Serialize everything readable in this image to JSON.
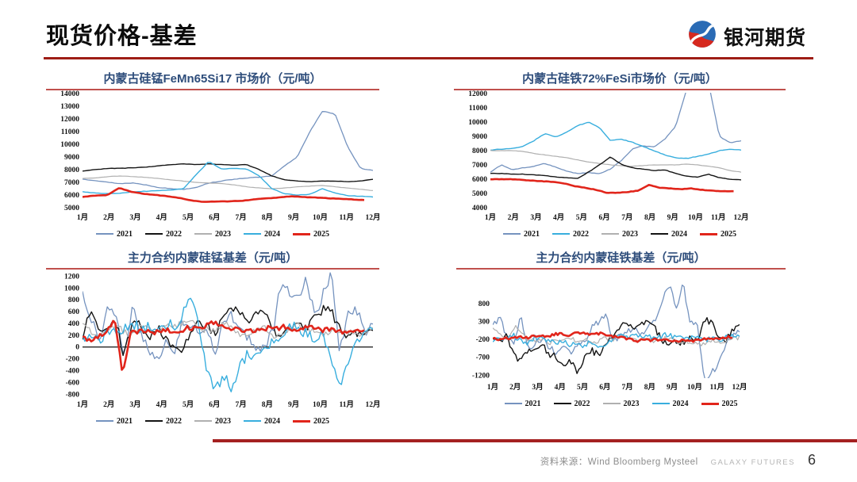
{
  "page": {
    "title": "现货价格-基差",
    "logo_text": "银河期货",
    "source_label": "资料来源：Wind Bloomberg Mysteel",
    "brand_footer": "GALAXY FUTURES",
    "page_number": "6"
  },
  "palette": {
    "steel_blue": "#7593bf",
    "black": "#141414",
    "gray": "#b0b0b0",
    "cyan": "#38aede",
    "red": "#e1251b",
    "title_navy": "#2e4d7b",
    "title_underline": "#c0504d",
    "rule_dark_red": "#9e1d15"
  },
  "months": [
    "1月",
    "2月",
    "3月",
    "4月",
    "5月",
    "6月",
    "7月",
    "8月",
    "9月",
    "10月",
    "11月",
    "12月"
  ],
  "chart_data": [
    {
      "type": "line",
      "title": "内蒙古硅锰FeMn65Si17 市场价（元/吨）",
      "ylabel": "元/吨",
      "ylim": [
        5000,
        14000
      ],
      "yticks": [
        14000,
        13000,
        12000,
        11000,
        10000,
        9000,
        8000,
        7000,
        6000,
        5000
      ],
      "zero_line": false,
      "n": 110,
      "series": [
        {
          "name": "2021",
          "color": "steel_blue",
          "width": 1.3,
          "noise": 40,
          "values": [
            7250,
            7150,
            7000,
            6900,
            6950,
            6800,
            6600,
            6500,
            6450,
            6600,
            6950,
            7100,
            7250,
            7350,
            7400,
            7500,
            8300,
            9000,
            11000,
            12600,
            12400,
            9800,
            8100,
            7950
          ]
        },
        {
          "name": "2022",
          "color": "black",
          "width": 1.4,
          "noise": 25,
          "values": [
            7900,
            8000,
            8100,
            8100,
            8150,
            8200,
            8300,
            8400,
            8450,
            8400,
            8450,
            8400,
            8350,
            8400,
            8000,
            7500,
            7200,
            7100,
            7050,
            7100,
            7100,
            7050,
            7100,
            7250
          ]
        },
        {
          "name": "2023",
          "color": "gray",
          "width": 1.2,
          "noise": 18,
          "values": [
            7300,
            7350,
            7450,
            7500,
            7450,
            7400,
            7300,
            7200,
            7100,
            7000,
            6950,
            6900,
            6800,
            6650,
            6550,
            6500,
            6550,
            6650,
            6700,
            6750,
            6650,
            6550,
            6450,
            6350
          ]
        },
        {
          "name": "2024",
          "color": "cyan",
          "width": 1.4,
          "noise": 30,
          "values": [
            6250,
            6150,
            6100,
            6150,
            6250,
            6300,
            6350,
            6400,
            6500,
            7600,
            8650,
            8050,
            8100,
            8050,
            7500,
            6500,
            6100,
            6000,
            6050,
            6500,
            6150,
            5950,
            5900,
            5850
          ]
        },
        {
          "name": "2025",
          "color": "red",
          "width": 2.6,
          "noise": 28,
          "end_frac": 0.97,
          "values": [
            5850,
            5950,
            6000,
            6550,
            6250,
            6100,
            6000,
            5900,
            5750,
            5550,
            5450,
            5500,
            5500,
            5550,
            5650,
            5750,
            5800,
            5900,
            5850,
            5800,
            5750,
            5700,
            5650,
            5600
          ]
        }
      ]
    },
    {
      "type": "line",
      "title": "内蒙古硅铁72%FeSi市场价（元/吨）",
      "ylabel": "元/吨",
      "ylim": [
        4000,
        12000
      ],
      "yticks": [
        12000,
        11000,
        10000,
        9000,
        8000,
        7000,
        6000,
        5000,
        4000
      ],
      "zero_line": false,
      "n": 110,
      "series": [
        {
          "name": "2021",
          "color": "steel_blue",
          "width": 1.3,
          "noise": 40,
          "values": [
            6500,
            7000,
            6650,
            6800,
            6900,
            7100,
            6850,
            6550,
            6400,
            6450,
            6400,
            6700,
            7300,
            8100,
            8350,
            8250,
            8800,
            9700,
            12300,
            12800,
            12800,
            9000,
            8550,
            8700
          ]
        },
        {
          "name": "2022",
          "color": "cyan",
          "width": 1.4,
          "noise": 35,
          "values": [
            8050,
            8100,
            8150,
            8300,
            8700,
            9200,
            8950,
            9300,
            9750,
            10000,
            9600,
            8700,
            8800,
            8600,
            8300,
            8000,
            7700,
            7500,
            7450,
            7600,
            7750,
            8000,
            8100,
            8050
          ]
        },
        {
          "name": "2023",
          "color": "gray",
          "width": 1.2,
          "noise": 18,
          "values": [
            8000,
            8000,
            8000,
            7950,
            7800,
            7700,
            7600,
            7500,
            7350,
            7200,
            7100,
            7000,
            6950,
            6900,
            6950,
            7000,
            7000,
            7000,
            7050,
            7000,
            6900,
            6800,
            6600,
            6500
          ]
        },
        {
          "name": "2024",
          "color": "black",
          "width": 1.4,
          "noise": 25,
          "values": [
            6400,
            6400,
            6350,
            6350,
            6300,
            6250,
            6150,
            6100,
            6050,
            6500,
            7000,
            7550,
            7050,
            6800,
            6700,
            6600,
            6650,
            6400,
            6200,
            6150,
            6350,
            6100,
            6000,
            5950
          ]
        },
        {
          "name": "2025",
          "color": "red",
          "width": 2.6,
          "noise": 25,
          "end_frac": 0.97,
          "values": [
            6000,
            6000,
            6000,
            5950,
            5900,
            5850,
            5800,
            5700,
            5500,
            5400,
            5250,
            5050,
            5050,
            5100,
            5200,
            5600,
            5400,
            5350,
            5300,
            5350,
            5250,
            5200,
            5150,
            5150
          ]
        }
      ]
    },
    {
      "type": "line",
      "title": "主力合约内蒙硅锰基差（元/吨）",
      "ylabel": "元/吨",
      "ylim": [
        -810,
        1260
      ],
      "yticks": [
        1200,
        1000,
        800,
        600,
        400,
        200,
        0,
        -200,
        -400,
        -600,
        -800
      ],
      "zero_line": true,
      "n": 130,
      "series": [
        {
          "name": "2021",
          "color": "steel_blue",
          "width": 1.3,
          "noise": 170,
          "values": [
            950,
            500,
            100,
            650,
            600,
            -150,
            650,
            300,
            -100,
            -250,
            100,
            -200,
            450,
            350,
            250,
            350,
            -100,
            450,
            550,
            250,
            150,
            -100,
            0,
            300,
            1150,
            900,
            800,
            1150,
            500,
            900,
            1250,
            -100,
            600,
            650,
            250,
            400
          ]
        },
        {
          "name": "2022",
          "color": "black",
          "width": 1.4,
          "noise": 150,
          "values": [
            200,
            650,
            300,
            350,
            450,
            -150,
            450,
            400,
            100,
            350,
            150,
            0,
            -150,
            300,
            400,
            350,
            200,
            550,
            650,
            600,
            450,
            650,
            550,
            300,
            150,
            300,
            350,
            300,
            500,
            650,
            600,
            300,
            150,
            250,
            150,
            300
          ]
        },
        {
          "name": "2023",
          "color": "gray",
          "width": 1.2,
          "noise": 120,
          "values": [
            400,
            250,
            150,
            300,
            400,
            250,
            200,
            350,
            300,
            250,
            400,
            350,
            400,
            450,
            300,
            300,
            250,
            400,
            350,
            200,
            250,
            300,
            350,
            200,
            250,
            300,
            350,
            300,
            250,
            200,
            250,
            300,
            250,
            200,
            250,
            300
          ]
        },
        {
          "name": "2024",
          "color": "cyan",
          "width": 1.4,
          "noise": 190,
          "values": [
            150,
            250,
            100,
            300,
            200,
            350,
            400,
            300,
            350,
            300,
            400,
            350,
            500,
            900,
            400,
            -400,
            -750,
            -500,
            -700,
            -300,
            -100,
            -150,
            0,
            100,
            200,
            400,
            300,
            250,
            150,
            250,
            -300,
            -650,
            -200,
            100,
            250,
            300
          ]
        },
        {
          "name": "2025",
          "color": "red",
          "width": 2.6,
          "noise": 85,
          "end_frac": 0.97,
          "values": [
            150,
            100,
            200,
            250,
            450,
            -480,
            300,
            250,
            280,
            250,
            300,
            260,
            280,
            320,
            300,
            350,
            400,
            380,
            330,
            300,
            280,
            260,
            300,
            320,
            300,
            340,
            300,
            320,
            350,
            300,
            280,
            300,
            260,
            240,
            260,
            250
          ]
        }
      ]
    },
    {
      "type": "line",
      "title": "主力合约内蒙硅铁基差（元/吨）",
      "ylabel": "元/吨",
      "ylim": [
        -1260,
        1310
      ],
      "yticks": [
        800,
        300,
        -200,
        -700,
        -1200
      ],
      "zero_line": false,
      "n": 130,
      "series": [
        {
          "name": "2021",
          "color": "steel_blue",
          "width": 1.3,
          "noise": 190,
          "values": [
            250,
            400,
            -100,
            -350,
            450,
            -500,
            -300,
            -150,
            -400,
            -550,
            -300,
            -650,
            -400,
            -250,
            100,
            300,
            500,
            -200,
            -150,
            0,
            100,
            -100,
            100,
            300,
            800,
            1350,
            700,
            1350,
            300,
            150,
            -1400,
            -1100,
            -900,
            -400,
            -100,
            100
          ]
        },
        {
          "name": "2022",
          "color": "black",
          "width": 1.4,
          "noise": 190,
          "values": [
            -150,
            -250,
            -100,
            -650,
            -800,
            -450,
            -550,
            -300,
            -700,
            -650,
            -1000,
            -800,
            -1150,
            -700,
            -500,
            -650,
            -300,
            -150,
            200,
            250,
            150,
            250,
            300,
            100,
            -200,
            -350,
            -250,
            -300,
            -150,
            -250,
            350,
            300,
            -100,
            -250,
            100,
            200
          ]
        },
        {
          "name": "2023",
          "color": "gray",
          "width": 1.2,
          "noise": 130,
          "values": [
            100,
            -50,
            -150,
            150,
            50,
            -200,
            -250,
            -150,
            -300,
            -200,
            -250,
            -150,
            -250,
            -200,
            -300,
            -250,
            -150,
            -200,
            -100,
            -200,
            -150,
            -250,
            -200,
            -250,
            -150,
            -200,
            -250,
            -300,
            -250,
            -350,
            -300,
            -250,
            -300,
            -250,
            -200,
            -150
          ]
        },
        {
          "name": "2024",
          "color": "cyan",
          "width": 1.4,
          "noise": 150,
          "values": [
            -250,
            -150,
            -200,
            -100,
            -250,
            -300,
            -150,
            -100,
            -250,
            -300,
            -250,
            -350,
            -300,
            -400,
            -250,
            -450,
            -350,
            -200,
            -100,
            -150,
            -50,
            -150,
            -100,
            -200,
            -100,
            -50,
            -150,
            -100,
            -150,
            -100,
            -250,
            -150,
            -200,
            -150,
            -100,
            -50
          ]
        },
        {
          "name": "2025",
          "color": "red",
          "width": 2.6,
          "noise": 75,
          "end_frac": 0.97,
          "values": [
            -150,
            -200,
            -150,
            -180,
            -120,
            -160,
            -100,
            -80,
            -120,
            -60,
            -20,
            -80,
            -40,
            0,
            -60,
            -20,
            -50,
            -100,
            -120,
            -150,
            -180,
            -250,
            -200,
            -220,
            -200,
            -180,
            -240,
            -260,
            -220,
            -250,
            -220,
            -180,
            -200,
            -160,
            -140,
            -150
          ]
        }
      ]
    }
  ]
}
